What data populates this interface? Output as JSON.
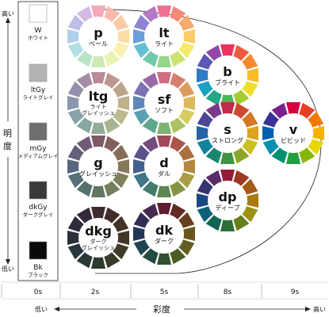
{
  "vertical_axis": {
    "title": "明度",
    "high": "高い",
    "low": "低い"
  },
  "horizontal_axis": {
    "title": "彩度",
    "low": "低い",
    "high": "高い",
    "ticks": [
      "0s",
      "2s",
      "5s",
      "8s",
      "9s"
    ]
  },
  "grays": [
    {
      "code": "W",
      "name": "ホワイト",
      "color": "#ffffff"
    },
    {
      "code": "ltGy",
      "name": "ライトグレイ",
      "color": "#b4b4b4"
    },
    {
      "code": "mGy",
      "name": "メディアムグレイ",
      "color": "#6e6e6e"
    },
    {
      "code": "dkGy",
      "name": "ダークグレイ",
      "color": "#3a3a3a"
    },
    {
      "code": "Bk",
      "name": "ブラック",
      "color": "#0a0a0a"
    }
  ],
  "tones": [
    {
      "code": "p",
      "name": "ペール",
      "name2": "",
      "colors": [
        "#f7a8b8",
        "#f9b9ad",
        "#fbcba6",
        "#fcdba8",
        "#fdeeb2",
        "#e9f2b0",
        "#cdeab6",
        "#b8e4c8",
        "#b4dfe2",
        "#b0cfeb",
        "#bdbfe8",
        "#d6b9e4"
      ]
    },
    {
      "code": "lt",
      "name": "ライト",
      "name2": "",
      "colors": [
        "#ef6f93",
        "#f58a78",
        "#f9ab6b",
        "#fbcc6a",
        "#f6ea6c",
        "#c9e470",
        "#97d58a",
        "#6fcaa8",
        "#66bfd0",
        "#6d9fd9",
        "#8c86d2",
        "#b678c6"
      ]
    },
    {
      "code": "b",
      "name": "ブライト",
      "name2": "",
      "colors": [
        "#e8335c",
        "#ef5a3c",
        "#f58a2c",
        "#f9bb28",
        "#eedf2b",
        "#a5cc33",
        "#52b455",
        "#22a784",
        "#1aa2c0",
        "#2f7bc8",
        "#5d59b6",
        "#9447aa"
      ]
    },
    {
      "code": "v",
      "name": "ビビッド",
      "name2": "",
      "colors": [
        "#d70040",
        "#e6411f",
        "#f07a00",
        "#f7b200",
        "#e8d800",
        "#86b800",
        "#20a040",
        "#009070",
        "#0090b0",
        "#0060b0",
        "#3a3098",
        "#7a2090"
      ]
    },
    {
      "code": "ltg",
      "name": "ライト",
      "name2": "グレイッシュ",
      "colors": [
        "#b88a96",
        "#bb9790",
        "#bea48b",
        "#c0b08c",
        "#bcb98f",
        "#a8b491",
        "#94ab97",
        "#88a6a2",
        "#88a1ac",
        "#8a97ae",
        "#9490ab",
        "#a58ca6"
      ]
    },
    {
      "code": "sf",
      "name": "ソフト",
      "name2": "",
      "colors": [
        "#cf6d82",
        "#d67e6c",
        "#dc9b5d",
        "#dfb85c",
        "#d6cd61",
        "#adc363",
        "#7fb173",
        "#5da78f",
        "#58a0b2",
        "#5f86b9",
        "#7a72b3",
        "#9b68a8"
      ]
    },
    {
      "code": "s",
      "name": "ストロング",
      "name2": "",
      "colors": [
        "#c2294b",
        "#cc4a30",
        "#d57723",
        "#dca31f",
        "#ccbf22",
        "#8ba72a",
        "#3f9345",
        "#1a8670",
        "#14819f",
        "#2562a5",
        "#4c4896",
        "#7a3a8c"
      ]
    },
    {
      "code": "g",
      "name": "グレイッシュ",
      "name2": "",
      "colors": [
        "#7f5a62",
        "#82605c",
        "#856d58",
        "#877858",
        "#82805b",
        "#73805d",
        "#617762",
        "#56726e",
        "#567079",
        "#58677d",
        "#635f7a",
        "#725b75"
      ]
    },
    {
      "code": "d",
      "name": "ダル",
      "name2": "",
      "colors": [
        "#a24a5c",
        "#a8574a",
        "#ae6f3f",
        "#b2893e",
        "#a99c42",
        "#849644",
        "#5e8653",
        "#457c6c",
        "#417688",
        "#46608d",
        "#5b528a",
        "#764c80"
      ]
    },
    {
      "code": "dp",
      "name": "ディープ",
      "name2": "",
      "colors": [
        "#941c38",
        "#9c3722",
        "#a35a16",
        "#a87c13",
        "#9b9115",
        "#667e1c",
        "#2d6e34",
        "#116452",
        "#0d5f78",
        "#1a4880",
        "#36346f",
        "#5b2a68"
      ]
    },
    {
      "code": "dkg",
      "name": "ダーク",
      "name2": "グレイッシュ",
      "colors": [
        "#3f2a2f",
        "#402c2a",
        "#423228",
        "#433728",
        "#403b29",
        "#383d2b",
        "#2f3a2f",
        "#2a3735",
        "#29363b",
        "#2a313c",
        "#2f2d3b",
        "#362b38"
      ]
    },
    {
      "code": "dk",
      "name": "ダーク",
      "name2": "",
      "colors": [
        "#5e1f2f",
        "#622b24",
        "#674020",
        "#6a561f",
        "#625f21",
        "#4c5c24",
        "#31522f",
        "#244b40",
        "#214652",
        "#243757",
        "#322d55",
        "#452950"
      ]
    }
  ]
}
